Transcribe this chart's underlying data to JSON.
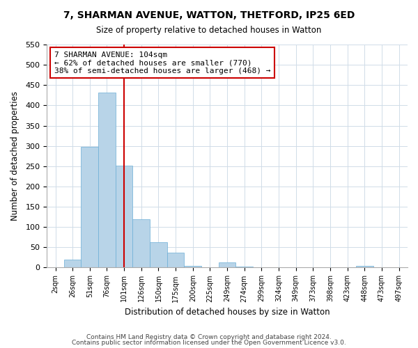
{
  "title": "7, SHARMAN AVENUE, WATTON, THETFORD, IP25 6ED",
  "subtitle": "Size of property relative to detached houses in Watton",
  "xlabel": "Distribution of detached houses by size in Watton",
  "ylabel": "Number of detached properties",
  "bar_labels": [
    "2sqm",
    "26sqm",
    "51sqm",
    "76sqm",
    "101sqm",
    "126sqm",
    "150sqm",
    "175sqm",
    "200sqm",
    "225sqm",
    "249sqm",
    "274sqm",
    "299sqm",
    "324sqm",
    "349sqm",
    "373sqm",
    "398sqm",
    "423sqm",
    "448sqm",
    "473sqm",
    "497sqm"
  ],
  "bar_values": [
    0,
    20,
    298,
    432,
    252,
    120,
    63,
    36,
    5,
    0,
    13,
    2,
    0,
    0,
    0,
    0,
    0,
    0,
    5,
    0,
    0
  ],
  "bar_color": "#b8d4e8",
  "bar_edge_color": "#6aaed6",
  "vline_x": 4,
  "vline_color": "#cc0000",
  "ylim": [
    0,
    550
  ],
  "yticks": [
    0,
    50,
    100,
    150,
    200,
    250,
    300,
    350,
    400,
    450,
    500,
    550
  ],
  "annotation_title": "7 SHARMAN AVENUE: 104sqm",
  "annotation_line1": "← 62% of detached houses are smaller (770)",
  "annotation_line2": "38% of semi-detached houses are larger (468) →",
  "annotation_box_color": "#ffffff",
  "annotation_box_edge": "#cc0000",
  "footer_line1": "Contains HM Land Registry data © Crown copyright and database right 2024.",
  "footer_line2": "Contains public sector information licensed under the Open Government Licence v3.0.",
  "grid_color": "#d0dce8",
  "background_color": "#ffffff"
}
